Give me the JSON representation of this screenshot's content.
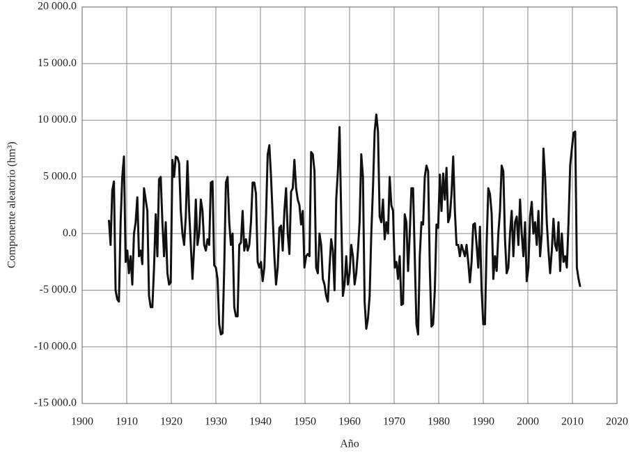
{
  "chart_data": {
    "type": "line",
    "xlabel": "Año",
    "ylabel": "Componente aleatorio (hm³)",
    "color": "#111111",
    "grid": true,
    "xlim": [
      1900,
      2020
    ],
    "xticks": [
      1900,
      1910,
      1920,
      1930,
      1940,
      1950,
      1960,
      1970,
      1980,
      1990,
      2000,
      2010,
      2020
    ],
    "ylim": [
      -15000,
      20000
    ],
    "yticks": [
      {
        "value": 20000,
        "label": "20 000.0"
      },
      {
        "value": 15000,
        "label": "15 000.0"
      },
      {
        "value": 10000,
        "label": "10 000.0"
      },
      {
        "value": 5000,
        "label": "5 000.0"
      },
      {
        "value": 0,
        "label": "0.0"
      },
      {
        "value": -5000,
        "label": "-5 000.0"
      },
      {
        "value": -10000,
        "label": "-10 000.0"
      },
      {
        "value": -15000,
        "label": "-15 000.0"
      }
    ],
    "x": [
      1906,
      1906.375,
      1906.75,
      1907.125,
      1907.5,
      1907.875,
      1908.25,
      1908.625,
      1909,
      1909.375,
      1909.75,
      1910.125,
      1910.5,
      1910.875,
      1911.25,
      1911.625,
      1912,
      1912.375,
      1912.75,
      1913.125,
      1913.5,
      1913.875,
      1914.25,
      1914.625,
      1915,
      1915.375,
      1915.75,
      1916.125,
      1916.5,
      1916.875,
      1917.25,
      1917.625,
      1918,
      1918.375,
      1918.75,
      1919.125,
      1919.5,
      1919.875,
      1920.25,
      1920.625,
      1921,
      1921.375,
      1921.75,
      1922.125,
      1922.5,
      1922.875,
      1923.25,
      1923.625,
      1924,
      1924.375,
      1924.75,
      1925.125,
      1925.5,
      1925.875,
      1926.25,
      1926.625,
      1927,
      1927.375,
      1927.75,
      1928.125,
      1928.5,
      1928.875,
      1929.25,
      1929.625,
      1930,
      1930.375,
      1930.75,
      1931.125,
      1931.5,
      1931.875,
      1932.25,
      1932.625,
      1933,
      1933.375,
      1933.75,
      1934.125,
      1934.5,
      1934.875,
      1935.25,
      1935.625,
      1936,
      1936.375,
      1936.75,
      1937.125,
      1937.5,
      1937.875,
      1938.25,
      1938.625,
      1939,
      1939.375,
      1939.75,
      1940.125,
      1940.5,
      1940.875,
      1941.25,
      1941.625,
      1942,
      1942.375,
      1942.75,
      1943.125,
      1943.5,
      1943.875,
      1944.25,
      1944.625,
      1945,
      1945.375,
      1945.75,
      1946.125,
      1946.5,
      1946.875,
      1947.25,
      1947.625,
      1948,
      1948.375,
      1948.75,
      1949.125,
      1949.5,
      1949.875,
      1950.25,
      1950.625,
      1951,
      1951.375,
      1951.75,
      1952.125,
      1952.5,
      1952.875,
      1953.25,
      1953.625,
      1954,
      1954.375,
      1954.75,
      1955.125,
      1955.5,
      1955.875,
      1956.25,
      1956.625,
      1957,
      1957.375,
      1957.75,
      1958.125,
      1958.5,
      1958.875,
      1959.25,
      1959.625,
      1960,
      1960.375,
      1960.75,
      1961.125,
      1961.5,
      1961.875,
      1962.25,
      1962.625,
      1963,
      1963.375,
      1963.75,
      1964.125,
      1964.5,
      1964.875,
      1965.25,
      1965.625,
      1966,
      1966.375,
      1966.75,
      1967.125,
      1967.5,
      1967.875,
      1968.25,
      1968.625,
      1969,
      1969.375,
      1969.75,
      1970.125,
      1970.5,
      1970.875,
      1971.25,
      1971.625,
      1972,
      1972.375,
      1972.75,
      1973.125,
      1973.5,
      1973.875,
      1974.25,
      1974.625,
      1975,
      1975.375,
      1975.75,
      1976.125,
      1976.5,
      1976.875,
      1977.25,
      1977.625,
      1978,
      1978.375,
      1978.75,
      1979.125,
      1979.5,
      1979.875,
      1980.25,
      1980.625,
      1981,
      1981.375,
      1981.75,
      1982.125,
      1982.5,
      1982.875,
      1983.25,
      1983.625,
      1984,
      1984.375,
      1984.75,
      1985.125,
      1985.5,
      1985.875,
      1986.25,
      1986.625,
      1987,
      1987.375,
      1987.75,
      1988.125,
      1988.5,
      1988.875,
      1989.25,
      1989.625,
      1990,
      1990.375,
      1990.75,
      1991.125,
      1991.5,
      1991.875,
      1992.25,
      1992.625,
      1993,
      1993.375,
      1993.75,
      1994.125,
      1994.5,
      1994.875,
      1995.25,
      1995.625,
      1996,
      1996.375,
      1996.75,
      1997.125,
      1997.5,
      1997.875,
      1998.25,
      1998.625,
      1999,
      1999.375,
      1999.75,
      2000.125,
      2000.5,
      2000.875,
      2001.25,
      2001.625,
      2002,
      2002.375,
      2002.75,
      2003.125,
      2003.5,
      2003.875,
      2004.25,
      2004.625,
      2005,
      2005.375,
      2005.75,
      2006.125,
      2006.5,
      2006.875,
      2007.25,
      2007.625,
      2008,
      2008.375,
      2008.75,
      2009.125,
      2009.5,
      2009.875,
      2010.25,
      2010.625,
      2011,
      2011.375,
      2011.75
    ],
    "values": [
      1200,
      -1000,
      3800,
      4600,
      -5000,
      -5800,
      -6000,
      1000,
      5000,
      6800,
      -2500,
      -1500,
      -3500,
      -2000,
      -4500,
      0,
      1000,
      3200,
      -2000,
      -1500,
      -2700,
      4000,
      3000,
      2000,
      -5500,
      -6500,
      -6500,
      -3000,
      1700,
      -2000,
      4800,
      5000,
      1000,
      -2000,
      1000,
      -3500,
      -4500,
      -4300,
      6500,
      5000,
      6800,
      6700,
      6200,
      2000,
      0,
      -1000,
      1500,
      6400,
      2000,
      -1000,
      -4000,
      -1200,
      3000,
      -1000,
      0,
      3000,
      2000,
      -1000,
      -1500,
      -500,
      -1000,
      4500,
      4600,
      -2800,
      -3000,
      -4000,
      -8000,
      -8900,
      -8800,
      -3000,
      4500,
      5000,
      1000,
      -1000,
      0,
      -6500,
      -7300,
      -7300,
      -1000,
      -800,
      2000,
      -1500,
      -500,
      -1500,
      -1000,
      1000,
      4500,
      4500,
      3500,
      -2500,
      -3000,
      -2500,
      -4200,
      -3000,
      1500,
      7000,
      7800,
      5000,
      1500,
      -2000,
      -4500,
      -3000,
      500,
      700,
      -1500,
      2000,
      4000,
      0,
      -1800,
      3700,
      4000,
      6500,
      4000,
      3000,
      2500,
      800,
      2000,
      -3000,
      -2000,
      -1800,
      -2000,
      7200,
      7000,
      5500,
      -3000,
      -3500,
      0,
      -1000,
      -4000,
      -4500,
      -5500,
      -6000,
      -3000,
      -500,
      -1500,
      -5000,
      3000,
      5500,
      9400,
      1500,
      -5500,
      -4500,
      -2000,
      -4500,
      -3500,
      -1000,
      -2000,
      -4500,
      -3500,
      -1500,
      1000,
      7000,
      5000,
      -6000,
      -8400,
      -7500,
      -5500,
      0,
      4000,
      9000,
      10500,
      9000,
      1500,
      1000,
      3000,
      -500,
      1000,
      0,
      5000,
      2500,
      2000,
      -3000,
      -2500,
      -4000,
      -2000,
      -6300,
      -6200,
      1700,
      1000,
      -3300,
      0,
      4000,
      4000,
      -2000,
      -8000,
      -8900,
      -2000,
      1000,
      800,
      5000,
      6000,
      5500,
      -3000,
      -8200,
      -8000,
      -5000,
      800,
      500,
      5200,
      2000,
      5300,
      3000,
      5800,
      1000,
      1500,
      3500,
      6800,
      2000,
      -1000,
      -1000,
      -2000,
      -1000,
      -1500,
      -2000,
      -1000,
      -2500,
      -4300,
      -2500,
      800,
      900,
      -1000,
      -3000,
      600,
      -5000,
      -8000,
      -8000,
      -1000,
      4000,
      3500,
      1800,
      -4000,
      -2000,
      -3300,
      0,
      2000,
      6000,
      5500,
      -500,
      -3500,
      -3000,
      0,
      2000,
      -2000,
      1000,
      1500,
      -1000,
      3000,
      0,
      -2000,
      1000,
      -4200,
      -3000,
      1500,
      2800,
      0,
      1000,
      -1000,
      2000,
      -2000,
      0,
      7500,
      5000,
      1000,
      -1500,
      -3500,
      -1500,
      1300,
      -1000,
      -1500,
      1000,
      -3300,
      0,
      -2500,
      -2000,
      -3000,
      1000,
      6000,
      7500,
      8900,
      9000,
      -3000,
      -4000,
      -4700
    ]
  }
}
